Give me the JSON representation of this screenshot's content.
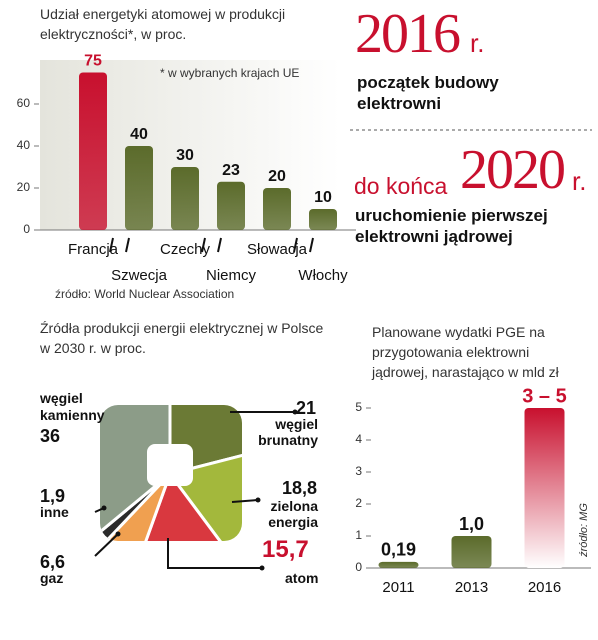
{
  "milestones": [
    {
      "year": "2016",
      "suffix": "r.",
      "text": "początek budowy elektrowni"
    },
    {
      "prefix": "do końca",
      "year": "2020",
      "suffix": "r.",
      "text": "uruchomienie pierwszej elektrowni jądrowej"
    }
  ],
  "chart_data": [
    {
      "type": "bar",
      "title": "Udział energetyki atomowej w produkcji elektryczności*, w proc.",
      "note": "* w wybranych krajach UE",
      "source": "źródło: World Nuclear Association",
      "categories": [
        "Francja",
        "Szwecja",
        "Czechy",
        "Niemcy",
        "Słowacja",
        "Włochy"
      ],
      "values": [
        75,
        40,
        30,
        23,
        20,
        10
      ],
      "colors": [
        "#c8102e",
        "#5b6b2b",
        "#5b6b2b",
        "#5b6b2b",
        "#5b6b2b",
        "#5b6b2b"
      ],
      "label_colors": [
        "#c8102e",
        "#111111",
        "#111111",
        "#111111",
        "#111111",
        "#111111"
      ],
      "ylim": [
        0,
        80
      ],
      "yticks": [
        0,
        20,
        40,
        60
      ]
    },
    {
      "type": "pie",
      "title": "Źródła produkcji energii elektrycznej w Polsce w 2030 r. w proc.",
      "categories": [
        "węgiel brunatny",
        "zielona energia",
        "atom",
        "gaz",
        "inne",
        "węgiel kamienny"
      ],
      "values": [
        21,
        18.8,
        15.7,
        6.6,
        1.9,
        36
      ],
      "value_labels": [
        "21",
        "18,8",
        "15,7",
        "6,6",
        "1,9",
        "36"
      ],
      "colors": [
        "#6b7a35",
        "#a3b83c",
        "#d9383f",
        "#f0a050",
        "#2b2b2b",
        "#8c9c88"
      ]
    },
    {
      "type": "bar",
      "title": "Planowane wydatki PGE na przygotowania elektrowni jądrowej, narastająco w mld zł",
      "source": "źródło: MG",
      "categories": [
        "2011",
        "2013",
        "2016"
      ],
      "values": [
        0.19,
        1.0,
        5
      ],
      "value_labels": [
        "0,19",
        "1,0",
        "3 – 5"
      ],
      "colors": [
        "#5b6b2b",
        "#5b6b2b",
        "#c8102e"
      ],
      "label_colors": [
        "#111111",
        "#111111",
        "#c8102e"
      ],
      "ylim": [
        0,
        5
      ],
      "yticks": [
        0,
        1,
        2,
        3,
        4,
        5
      ]
    }
  ]
}
